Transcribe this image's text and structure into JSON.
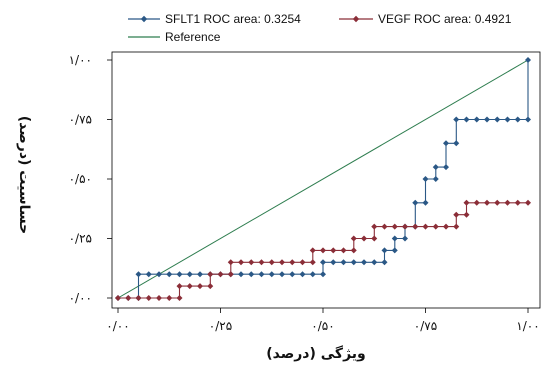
{
  "chart_data": {
    "type": "line",
    "xlabel": "ویژگی (درصد)",
    "ylabel": "حساسیت (درصد)",
    "xlim": [
      0,
      1
    ],
    "ylim": [
      0,
      1
    ],
    "x_ticks": [
      0,
      0.25,
      0.5,
      0.75,
      1
    ],
    "x_tick_labels": [
      "۰/۰۰",
      "۰/۲۵",
      "۰/۵۰",
      "۰/۷۵",
      "۱/۰۰"
    ],
    "y_ticks": [
      0,
      0.25,
      0.5,
      0.75,
      1
    ],
    "y_tick_labels": [
      "۰/۰۰",
      "۰/۲۵",
      "۰/۵۰",
      "۰/۷۵",
      "۱/۰۰"
    ],
    "grid": false,
    "legend_position": "top",
    "series": [
      {
        "name": "SFLT1 ROC area: 0.3254",
        "color": "#2b5886",
        "marker": "diamond",
        "x": [
          0,
          0.025,
          0.05,
          0.05,
          0.075,
          0.1,
          0.125,
          0.15,
          0.175,
          0.2,
          0.225,
          0.25,
          0.275,
          0.3,
          0.325,
          0.35,
          0.375,
          0.4,
          0.425,
          0.45,
          0.475,
          0.5,
          0.5,
          0.525,
          0.55,
          0.575,
          0.6,
          0.625,
          0.65,
          0.65,
          0.675,
          0.675,
          0.7,
          0.7,
          0.725,
          0.725,
          0.75,
          0.75,
          0.775,
          0.775,
          0.8,
          0.8,
          0.825,
          0.825,
          0.85,
          0.875,
          0.9,
          0.925,
          0.95,
          0.975,
          1,
          1
        ],
        "y": [
          0,
          0,
          0,
          0.1,
          0.1,
          0.1,
          0.1,
          0.1,
          0.1,
          0.1,
          0.1,
          0.1,
          0.1,
          0.1,
          0.1,
          0.1,
          0.1,
          0.1,
          0.1,
          0.1,
          0.1,
          0.1,
          0.15,
          0.15,
          0.15,
          0.15,
          0.15,
          0.15,
          0.15,
          0.2,
          0.2,
          0.25,
          0.25,
          0.3,
          0.3,
          0.4,
          0.4,
          0.5,
          0.5,
          0.55,
          0.55,
          0.65,
          0.65,
          0.75,
          0.75,
          0.75,
          0.75,
          0.75,
          0.75,
          0.75,
          0.75,
          1
        ]
      },
      {
        "name": "VEGF ROC area: 0.4921",
        "color": "#8b2e38",
        "marker": "diamond",
        "x": [
          0,
          0.025,
          0.05,
          0.075,
          0.1,
          0.125,
          0.15,
          0.15,
          0.175,
          0.2,
          0.225,
          0.225,
          0.25,
          0.275,
          0.275,
          0.3,
          0.325,
          0.35,
          0.375,
          0.4,
          0.425,
          0.45,
          0.475,
          0.475,
          0.5,
          0.525,
          0.55,
          0.575,
          0.575,
          0.6,
          0.625,
          0.625,
          0.65,
          0.675,
          0.7,
          0.725,
          0.75,
          0.775,
          0.8,
          0.825,
          0.825,
          0.85,
          0.85,
          0.875,
          0.9,
          0.925,
          0.95,
          0.975,
          1
        ],
        "y": [
          0,
          0,
          0,
          0,
          0,
          0,
          0,
          0.05,
          0.05,
          0.05,
          0.05,
          0.1,
          0.1,
          0.1,
          0.15,
          0.15,
          0.15,
          0.15,
          0.15,
          0.15,
          0.15,
          0.15,
          0.15,
          0.2,
          0.2,
          0.2,
          0.2,
          0.2,
          0.25,
          0.25,
          0.25,
          0.3,
          0.3,
          0.3,
          0.3,
          0.3,
          0.3,
          0.3,
          0.3,
          0.3,
          0.35,
          0.35,
          0.4,
          0.4,
          0.4,
          0.4,
          0.4,
          0.4,
          0.4
        ]
      },
      {
        "name": "Reference",
        "color": "#2e7d4f",
        "marker": "none",
        "x": [
          0,
          1
        ],
        "y": [
          0,
          1
        ]
      }
    ]
  }
}
